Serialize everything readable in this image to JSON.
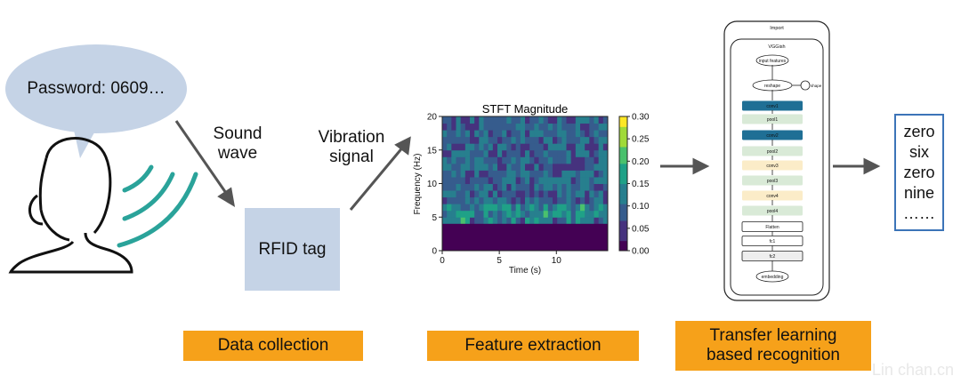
{
  "speech_bubble": {
    "text": "Password: 0609…"
  },
  "labels": {
    "sound_wave": [
      "Sound",
      "wave"
    ],
    "vibration_signal": [
      "Vibration",
      "signal"
    ]
  },
  "rfid": {
    "label": "RFID tag"
  },
  "stages": {
    "data_collection": "Data collection",
    "feature_extraction": "Feature extraction",
    "transfer_learning": [
      "Transfer learning",
      "based recognition"
    ]
  },
  "output": {
    "words": [
      "zero",
      "six",
      "zero",
      "nine",
      "……"
    ]
  },
  "chart_data": {
    "type": "heatmap",
    "title": "STFT Magnitude",
    "xlabel": "Time (s)",
    "ylabel": "Frequency (Hz)",
    "xlim": [
      0,
      14.5
    ],
    "ylim": [
      0,
      20
    ],
    "x_ticks": [
      0,
      5,
      10
    ],
    "y_ticks": [
      0,
      5,
      10,
      15,
      20
    ],
    "colorbar": {
      "min": 0.0,
      "max": 0.3,
      "ticks": [
        "0.00",
        "0.05",
        "0.10",
        "0.15",
        "0.20",
        "0.25",
        "0.30"
      ]
    },
    "colormap": [
      "#440154",
      "#46327e",
      "#365c8d",
      "#277f8e",
      "#1fa187",
      "#4ac16d",
      "#a0da39",
      "#fde725"
    ],
    "note_low_band": "magnitude near 0 for 0–4 Hz"
  },
  "vgg": {
    "outer_title": "Import",
    "inner_title": "VGGish",
    "nodes": [
      {
        "label": "input features",
        "kind": "ellipse"
      },
      {
        "label": "reshape",
        "kind": "ellipse",
        "side": "shape"
      },
      {
        "label": "conv1",
        "kind": "conv-dark"
      },
      {
        "label": "pool1",
        "kind": "pool"
      },
      {
        "label": "conv2",
        "kind": "conv-dark"
      },
      {
        "label": "pool2",
        "kind": "pool"
      },
      {
        "label": "conv3",
        "kind": "conv-light"
      },
      {
        "label": "pool3",
        "kind": "pool"
      },
      {
        "label": "conv4",
        "kind": "conv-light"
      },
      {
        "label": "pool4",
        "kind": "pool"
      },
      {
        "label": "Flatten",
        "kind": "box"
      },
      {
        "label": "fc1",
        "kind": "box"
      },
      {
        "label": "fc2",
        "kind": "box-grey"
      },
      {
        "label": "embedding",
        "kind": "ellipse"
      }
    ]
  },
  "colors": {
    "bubble": "#c5d3e6",
    "rfid": "#c5d3e6",
    "stage": "#f6a11a",
    "wave": "#2aa39a",
    "arrow": "#555555",
    "output_border": "#3c74b8"
  },
  "watermark": "Lin chan.cn"
}
